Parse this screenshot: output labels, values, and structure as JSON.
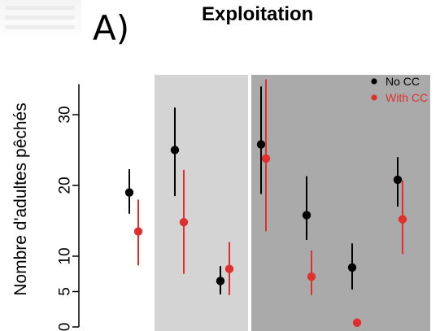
{
  "panel_label": "A)",
  "chart_data": {
    "type": "scatter",
    "title": "Exploitation",
    "xlabel": "",
    "ylabel": "Nombre d'adultes pêchés",
    "ylim": [
      0,
      35
    ],
    "yticks": [
      0,
      5,
      10,
      20,
      30
    ],
    "grid": false,
    "legend_position": "top-right",
    "group_shading": [
      "white",
      "light-gray",
      "dark-gray"
    ],
    "group_sizes": [
      1,
      2,
      4
    ],
    "x": [
      1,
      2,
      3,
      4,
      5,
      6,
      7
    ],
    "series": [
      {
        "name": "No CC",
        "color": "#000000",
        "values": [
          19.0,
          25.0,
          6.5,
          25.8,
          15.8,
          8.4,
          20.8
        ],
        "lower": [
          16.0,
          18.5,
          4.6,
          18.8,
          12.3,
          5.3,
          17.0
        ],
        "upper": [
          22.3,
          31.0,
          8.6,
          34.0,
          21.3,
          11.8,
          24.0
        ]
      },
      {
        "name": "With CC",
        "color": "#e0302d",
        "values": [
          13.5,
          14.8,
          8.2,
          23.8,
          7.1,
          0.6,
          15.2
        ],
        "lower": [
          8.7,
          7.5,
          4.5,
          13.5,
          4.5,
          0.0,
          10.3
        ],
        "upper": [
          18.0,
          22.2,
          12.0,
          35.0,
          10.8,
          1.2,
          20.7
        ]
      }
    ]
  },
  "colors": {
    "light_gray": "#d4d4d4",
    "dark_gray": "#aaaaaa",
    "axis": "#000000"
  }
}
